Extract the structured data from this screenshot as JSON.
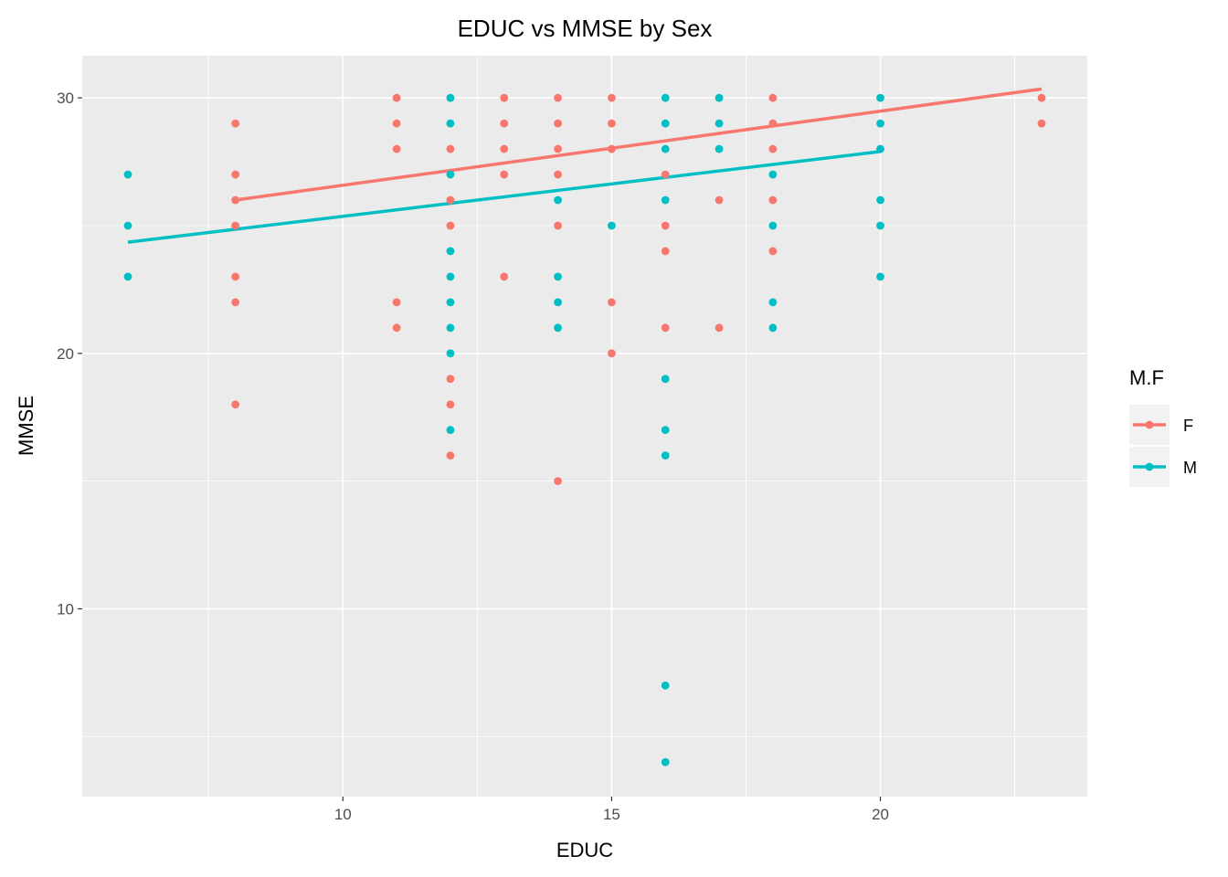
{
  "chart_data": {
    "type": "scatter",
    "title": "EDUC vs MMSE by Sex",
    "xlabel": "EDUC",
    "ylabel": "MMSE",
    "xlim": [
      5.15,
      23.85
    ],
    "ylim": [
      2.65,
      31.65
    ],
    "x_ticks": [
      10,
      15,
      20
    ],
    "y_ticks": [
      10,
      20,
      30
    ],
    "x_tick_labels": [
      "10",
      "15",
      "20"
    ],
    "y_tick_labels": [
      "10",
      "20",
      "30"
    ],
    "grid": true,
    "legend": {
      "title": "M.F",
      "position": "right"
    },
    "series": [
      {
        "name": "F",
        "color": "#F8766D",
        "points": [
          [
            8,
            29
          ],
          [
            8,
            27
          ],
          [
            8,
            26
          ],
          [
            8,
            25
          ],
          [
            8,
            23
          ],
          [
            8,
            22
          ],
          [
            8,
            18
          ],
          [
            11,
            30
          ],
          [
            11,
            29
          ],
          [
            11,
            28
          ],
          [
            11,
            22
          ],
          [
            11,
            21
          ],
          [
            12,
            28
          ],
          [
            12,
            26
          ],
          [
            12,
            25
          ],
          [
            12,
            19
          ],
          [
            12,
            18
          ],
          [
            12,
            16
          ],
          [
            13,
            30
          ],
          [
            13,
            29
          ],
          [
            13,
            28
          ],
          [
            13,
            27
          ],
          [
            13,
            23
          ],
          [
            14,
            30
          ],
          [
            14,
            29
          ],
          [
            14,
            28
          ],
          [
            14,
            27
          ],
          [
            14,
            25
          ],
          [
            14,
            15
          ],
          [
            15,
            30
          ],
          [
            15,
            29
          ],
          [
            15,
            28
          ],
          [
            15,
            22
          ],
          [
            15,
            20
          ],
          [
            16,
            27
          ],
          [
            16,
            25
          ],
          [
            16,
            24
          ],
          [
            16,
            21
          ],
          [
            17,
            26
          ],
          [
            17,
            21
          ],
          [
            18,
            30
          ],
          [
            18,
            29
          ],
          [
            18,
            28
          ],
          [
            18,
            26
          ],
          [
            18,
            24
          ],
          [
            23,
            30
          ],
          [
            23,
            29
          ]
        ],
        "trend": [
          [
            8,
            26.0
          ],
          [
            23,
            30.35
          ]
        ]
      },
      {
        "name": "M",
        "color": "#00BFC4",
        "points": [
          [
            6,
            27
          ],
          [
            6,
            25
          ],
          [
            6,
            23
          ],
          [
            12,
            30
          ],
          [
            12,
            29
          ],
          [
            12,
            27
          ],
          [
            12,
            24
          ],
          [
            12,
            23
          ],
          [
            12,
            22
          ],
          [
            12,
            21
          ],
          [
            12,
            20
          ],
          [
            12,
            17
          ],
          [
            14,
            26
          ],
          [
            14,
            23
          ],
          [
            14,
            22
          ],
          [
            14,
            21
          ],
          [
            15,
            25
          ],
          [
            16,
            30
          ],
          [
            16,
            29
          ],
          [
            16,
            28
          ],
          [
            16,
            26
          ],
          [
            16,
            19
          ],
          [
            16,
            17
          ],
          [
            16,
            16
          ],
          [
            16,
            7
          ],
          [
            16,
            4
          ],
          [
            17,
            30
          ],
          [
            17,
            29
          ],
          [
            17,
            28
          ],
          [
            18,
            27
          ],
          [
            18,
            25
          ],
          [
            18,
            22
          ],
          [
            18,
            21
          ],
          [
            20,
            30
          ],
          [
            20,
            29
          ],
          [
            20,
            28
          ],
          [
            20,
            26
          ],
          [
            20,
            25
          ],
          [
            20,
            23
          ]
        ],
        "trend": [
          [
            6,
            24.35
          ],
          [
            20,
            27.9
          ]
        ]
      }
    ]
  }
}
